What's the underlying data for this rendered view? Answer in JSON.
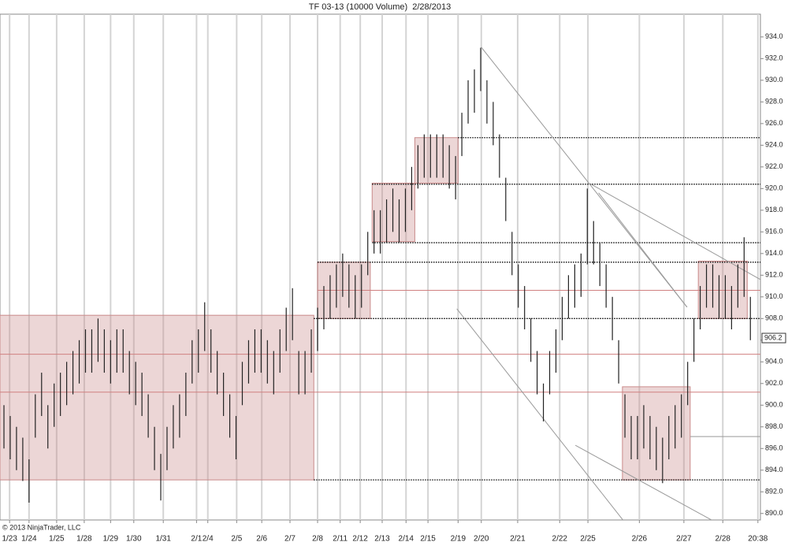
{
  "chart_data": {
    "type": "high-low",
    "title": "TF 03-13 (10000 Volume)  2/28/2013",
    "copyright": "© 2013 NinjaTrader, LLC",
    "color": "#222",
    "grid": "vertical",
    "xlim": [
      -0.63,
      120.6
    ],
    "ylim": [
      889.4,
      936.1
    ],
    "xticks": [
      {
        "value": 0.9,
        "label": "1/23"
      },
      {
        "value": 4.0,
        "label": "1/24"
      },
      {
        "value": 8.4,
        "label": "1/25"
      },
      {
        "value": 12.8,
        "label": "1/28"
      },
      {
        "value": 17.0,
        "label": "1/29"
      },
      {
        "value": 20.7,
        "label": "1/30"
      },
      {
        "value": 25.4,
        "label": "1/31"
      },
      {
        "value": 30.7,
        "label": "2/1"
      },
      {
        "value": 32.5,
        "label": "2/4"
      },
      {
        "value": 37.1,
        "label": "2/5"
      },
      {
        "value": 41.1,
        "label": "2/6"
      },
      {
        "value": 45.6,
        "label": "2/7"
      },
      {
        "value": 50.0,
        "label": "2/8"
      },
      {
        "value": 53.6,
        "label": "2/11"
      },
      {
        "value": 56.8,
        "label": "2/12"
      },
      {
        "value": 60.3,
        "label": "2/13"
      },
      {
        "value": 64.1,
        "label": "2/14"
      },
      {
        "value": 67.6,
        "label": "2/15"
      },
      {
        "value": 72.4,
        "label": "2/19"
      },
      {
        "value": 76.1,
        "label": "2/20"
      },
      {
        "value": 81.9,
        "label": "2/21"
      },
      {
        "value": 88.6,
        "label": "2/22"
      },
      {
        "value": 93.1,
        "label": "2/25"
      },
      {
        "value": 101.3,
        "label": "2/26"
      },
      {
        "value": 108.4,
        "label": "2/27"
      },
      {
        "value": 114.6,
        "label": "2/28"
      },
      {
        "value": 120.2,
        "label": "20:38"
      }
    ],
    "yticks": [
      {
        "value": 890,
        "label": "890.0"
      },
      {
        "value": 892,
        "label": "892.0"
      },
      {
        "value": 894,
        "label": "894.0"
      },
      {
        "value": 896,
        "label": "896.0"
      },
      {
        "value": 898,
        "label": "898.0"
      },
      {
        "value": 900,
        "label": "900.0"
      },
      {
        "value": 902,
        "label": "902.0"
      },
      {
        "value": 904,
        "label": "904.0"
      },
      {
        "value": 906,
        "label": "906.0"
      },
      {
        "value": 908,
        "label": "908.0"
      },
      {
        "value": 910,
        "label": "910.0"
      },
      {
        "value": 912,
        "label": "912.0"
      },
      {
        "value": 914,
        "label": "914.0"
      },
      {
        "value": 916,
        "label": "916.0"
      },
      {
        "value": 918,
        "label": "918.0"
      },
      {
        "value": 920,
        "label": "920.0"
      },
      {
        "value": 922,
        "label": "922.0"
      },
      {
        "value": 924,
        "label": "924.0"
      },
      {
        "value": 926,
        "label": "926.0"
      },
      {
        "value": 928,
        "label": "928.0"
      },
      {
        "value": 930,
        "label": "930.0"
      },
      {
        "value": 932,
        "label": "932.0"
      },
      {
        "value": 934,
        "label": "934.0"
      }
    ],
    "last": 906.2,
    "high": [
      900,
      899,
      898,
      897,
      895,
      901,
      903,
      900,
      902,
      903,
      904,
      905,
      906,
      907,
      907,
      908,
      907,
      906,
      907,
      907,
      905,
      904,
      903,
      901,
      898,
      895.5,
      898,
      900,
      901,
      903,
      906,
      907,
      909.5,
      907,
      905,
      903,
      901,
      899,
      904,
      906,
      907,
      907,
      906,
      905,
      907,
      909,
      910.8,
      905,
      905,
      907,
      909,
      911,
      912,
      913,
      914,
      913,
      912,
      913,
      916,
      918,
      918,
      919,
      920,
      919,
      920,
      922,
      924,
      925,
      925,
      925,
      925,
      924,
      923,
      927,
      930,
      931,
      933,
      930,
      928,
      925,
      921,
      916,
      913,
      911,
      908,
      905,
      902,
      905,
      907,
      910,
      912,
      913,
      914,
      920,
      917,
      915,
      913,
      910,
      906,
      901,
      899,
      899,
      900,
      899,
      898,
      897,
      899,
      900,
      901,
      904,
      908,
      911,
      913,
      913,
      912,
      912,
      911,
      913,
      915.5,
      910
    ],
    "low": [
      896,
      895,
      894,
      893,
      891,
      897,
      899,
      896,
      898,
      899,
      900,
      901,
      902,
      903,
      903,
      904,
      903,
      902,
      903,
      903,
      901,
      900,
      899,
      897,
      894,
      891.2,
      894,
      896,
      897,
      899,
      902,
      903,
      905,
      903,
      901,
      899,
      897,
      895,
      900,
      902,
      903,
      903,
      902,
      901,
      903,
      905,
      906,
      901,
      901,
      903,
      905,
      907,
      908,
      909,
      910,
      909,
      908,
      909,
      912,
      914,
      914,
      915,
      916,
      915,
      916,
      918,
      920,
      921,
      921,
      921,
      921,
      920,
      919,
      923,
      926,
      927,
      929,
      926,
      924,
      921,
      917,
      912,
      909,
      907,
      904,
      901,
      898.5,
      901,
      903,
      906,
      908,
      909,
      910,
      913,
      913,
      911,
      909,
      906,
      902,
      897,
      895,
      895,
      896,
      895,
      894,
      892.8,
      895,
      896,
      897,
      900,
      904,
      907,
      909,
      909,
      908,
      908,
      907,
      909,
      910,
      906
    ],
    "zones": [
      {
        "x": [
          -0.63,
          49.4
        ],
        "y": [
          893.1,
          908.3
        ]
      },
      {
        "x": [
          50.0,
          58.4
        ],
        "y": [
          908.0,
          913.2
        ]
      },
      {
        "x": [
          58.7,
          65.5
        ],
        "y": [
          915.1,
          920.5
        ]
      },
      {
        "x": [
          65.5,
          72.4
        ],
        "y": [
          920.5,
          924.7
        ]
      },
      {
        "x": [
          98.6,
          109.4
        ],
        "y": [
          893.1,
          901.7
        ]
      },
      {
        "x": [
          110.7,
          118.5
        ],
        "y": [
          908.0,
          913.3
        ]
      }
    ],
    "zone_color": "#c98a8a",
    "levels": [
      {
        "value": 924.7,
        "from": 72.4,
        "color": "#000",
        "dotted": true
      },
      {
        "value": 920.4,
        "from": 58.7,
        "color": "#000",
        "dotted": true
      },
      {
        "value": 915.0,
        "from": 58.7,
        "color": "#000",
        "dotted": true
      },
      {
        "value": 913.2,
        "from": 50.0,
        "color": "#000",
        "dotted": true
      },
      {
        "value": 908.0,
        "from": 49.4,
        "color": "#000",
        "dotted": true
      },
      {
        "value": 893.1,
        "from": 49.4,
        "color": "#000",
        "dotted": true
      },
      {
        "value": 910.6,
        "from": 50.0,
        "color": "#d08080",
        "dotted": false
      },
      {
        "value": 904.7,
        "from": -0.63,
        "color": "#d08080",
        "dotted": false
      },
      {
        "value": 901.2,
        "from": -0.63,
        "color": "#d08080",
        "dotted": false
      },
      {
        "value": 897.1,
        "from": 109.4,
        "color": "#999",
        "dotted": false
      }
    ],
    "trendlines": [
      {
        "x": [
          76.1,
          108.9
        ],
        "y": [
          933.05,
          909.05
        ]
      },
      {
        "x": [
          72.2,
          99.9
        ],
        "y": [
          908.9,
          888.5
        ]
      },
      {
        "x": [
          93.6,
          120.6
        ],
        "y": [
          920.4,
          911.6
        ]
      },
      {
        "x": [
          94.8,
          108.9
        ],
        "y": [
          919.6,
          909.05
        ]
      },
      {
        "x": [
          91.1,
          115.0
        ],
        "y": [
          896.3,
          888.7
        ]
      }
    ]
  }
}
